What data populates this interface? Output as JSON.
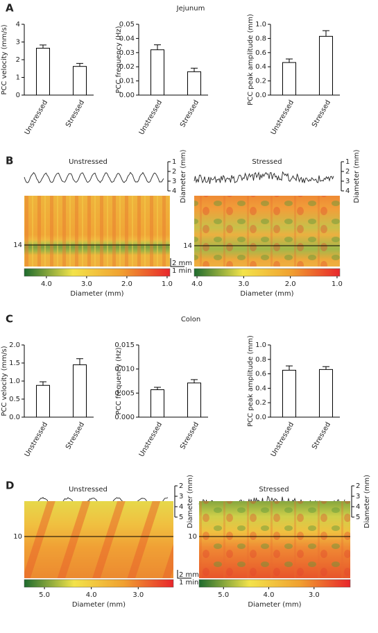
{
  "sections": [
    {
      "label": "A",
      "title": "Jejunum"
    },
    {
      "label": "B"
    },
    {
      "label": "C",
      "title": "Colon"
    },
    {
      "label": "D"
    }
  ],
  "chart_data": [
    {
      "type": "bar",
      "ylabel": "PCC velocity (mm/s)",
      "categories": [
        "Unstressed",
        "Stressed"
      ],
      "values": [
        2.65,
        1.62
      ],
      "errors": [
        0.18,
        0.17
      ],
      "color": "#ffffff",
      "ylim": [
        0,
        4
      ],
      "yticks": [
        0,
        1,
        2,
        3,
        4
      ]
    },
    {
      "type": "bar",
      "ylabel": "PCC frequency (Hz)",
      "categories": [
        "Unstressed",
        "Stressed"
      ],
      "values": [
        0.032,
        0.0165
      ],
      "errors": [
        0.0035,
        0.0025
      ],
      "color": "#ffffff",
      "ylim": [
        0,
        0.05
      ],
      "yticks": [
        {
          "value": 0,
          "label": "0.00"
        },
        0.01,
        0.02,
        0.03,
        0.04,
        0.05
      ]
    },
    {
      "type": "bar",
      "ylabel": "PCC peak amplitude (mm)",
      "categories": [
        "Unstressed",
        "Stressed"
      ],
      "values": [
        0.46,
        0.83
      ],
      "errors": [
        0.05,
        0.08
      ],
      "color": "#ffffff",
      "ylim": [
        0,
        1
      ],
      "yticks": [
        {
          "value": 0,
          "label": "0.0"
        },
        0.2,
        0.4,
        0.6,
        0.8,
        {
          "value": 1,
          "label": "1.0"
        }
      ]
    },
    {
      "type": "bar",
      "ylabel": "PCC velocity (mm/s)",
      "categories": [
        "Unstressed",
        "Stressed"
      ],
      "values": [
        0.88,
        1.45
      ],
      "errors": [
        0.1,
        0.17
      ],
      "color": "#ffffff",
      "ylim": [
        0,
        2
      ],
      "yticks": [
        {
          "value": 0,
          "label": "0.0"
        },
        0.5,
        {
          "value": 1,
          "label": "1.0"
        },
        1.5,
        {
          "value": 2,
          "label": "2.0"
        }
      ]
    },
    {
      "type": "bar",
      "ylabel": "PCC frequency (Hz)",
      "categories": [
        "Unstressed",
        "Stressed"
      ],
      "values": [
        0.0057,
        0.0071
      ],
      "errors": [
        0.0005,
        0.0007
      ],
      "color": "#ffffff",
      "ylim": [
        0,
        0.015
      ],
      "yticks": [
        {
          "value": 0,
          "label": "0.000"
        },
        0.005,
        {
          "value": 0.01,
          "label": "0.010"
        },
        0.015
      ]
    },
    {
      "type": "bar",
      "ylabel": "PCC peak amplitude (mm)",
      "categories": [
        "Unstressed",
        "Stressed"
      ],
      "values": [
        0.65,
        0.66
      ],
      "errors": [
        0.06,
        0.04
      ],
      "color": "#ffffff",
      "ylim": [
        0,
        1
      ],
      "yticks": [
        {
          "value": 0,
          "label": "0.0"
        },
        0.2,
        0.4,
        0.6,
        0.8,
        {
          "value": 1,
          "label": "1.0"
        }
      ]
    },
    {
      "type": "map",
      "title": "Unstressed",
      "trace_ylabel": "Diameter (mm)",
      "trace_ylim": [
        1,
        4
      ],
      "trace_yticks": [
        1,
        2,
        3,
        4
      ],
      "row_label": 14,
      "scale_bars": [
        "2 mm",
        "1 min"
      ],
      "colormap": [
        "#1e6b2e",
        "#f3e34a",
        "#f0a030",
        "#e8262b"
      ],
      "clim": [
        4.55,
        0.93
      ],
      "cticks": [
        {
          "value": 4,
          "label": "4.0"
        },
        {
          "value": 3,
          "label": "3.0"
        },
        {
          "value": 2,
          "label": "2.0"
        },
        {
          "value": 1,
          "label": "1.0"
        }
      ],
      "xlabel": "Diameter (mm)"
    },
    {
      "type": "map",
      "title": "Stressed",
      "trace_ylabel": "Diameter (mm)",
      "trace_ylim": [
        1,
        4
      ],
      "trace_yticks": [
        1,
        2,
        3,
        4
      ],
      "row_label": 14,
      "colormap": [
        "#1e6b2e",
        "#f3e34a",
        "#f0a030",
        "#e8262b"
      ],
      "clim": [
        4.06,
        0.94
      ],
      "cticks": [
        {
          "value": 4,
          "label": "4.0"
        },
        {
          "value": 3,
          "label": "3.0"
        },
        {
          "value": 2,
          "label": "2.0"
        },
        {
          "value": 1,
          "label": "1.0"
        }
      ],
      "xlabel": "Diameter (mm)"
    },
    {
      "type": "map",
      "title": "Unstressed",
      "trace_ylabel": "Diameter (mm)",
      "trace_ylim": [
        2,
        5
      ],
      "trace_yticks": [
        2,
        3,
        4,
        5
      ],
      "row_label": 10,
      "scale_bars": [
        "2 mm",
        "1 min"
      ],
      "colormap": [
        "#1e6b2e",
        "#f3e34a",
        "#f0a030",
        "#e8262b"
      ],
      "clim": [
        5.43,
        2.25
      ],
      "cticks": [
        {
          "value": 5,
          "label": "5.0"
        },
        {
          "value": 4,
          "label": "4.0"
        },
        {
          "value": 3,
          "label": "3.0"
        }
      ],
      "xlabel": "Diameter (mm)"
    },
    {
      "type": "map",
      "title": "Stressed",
      "trace_ylabel": "Diameter (mm)",
      "trace_ylim": [
        2,
        5
      ],
      "trace_yticks": [
        2,
        3,
        4,
        5
      ],
      "row_label": 10,
      "colormap": [
        "#1e6b2e",
        "#f3e34a",
        "#f0a030",
        "#e8262b"
      ],
      "clim": [
        5.54,
        2.2
      ],
      "cticks": [
        {
          "value": 5,
          "label": "5.0"
        },
        {
          "value": 4,
          "label": "4.0"
        },
        {
          "value": 3,
          "label": "3.0"
        }
      ],
      "xlabel": "Diameter (mm)"
    }
  ]
}
